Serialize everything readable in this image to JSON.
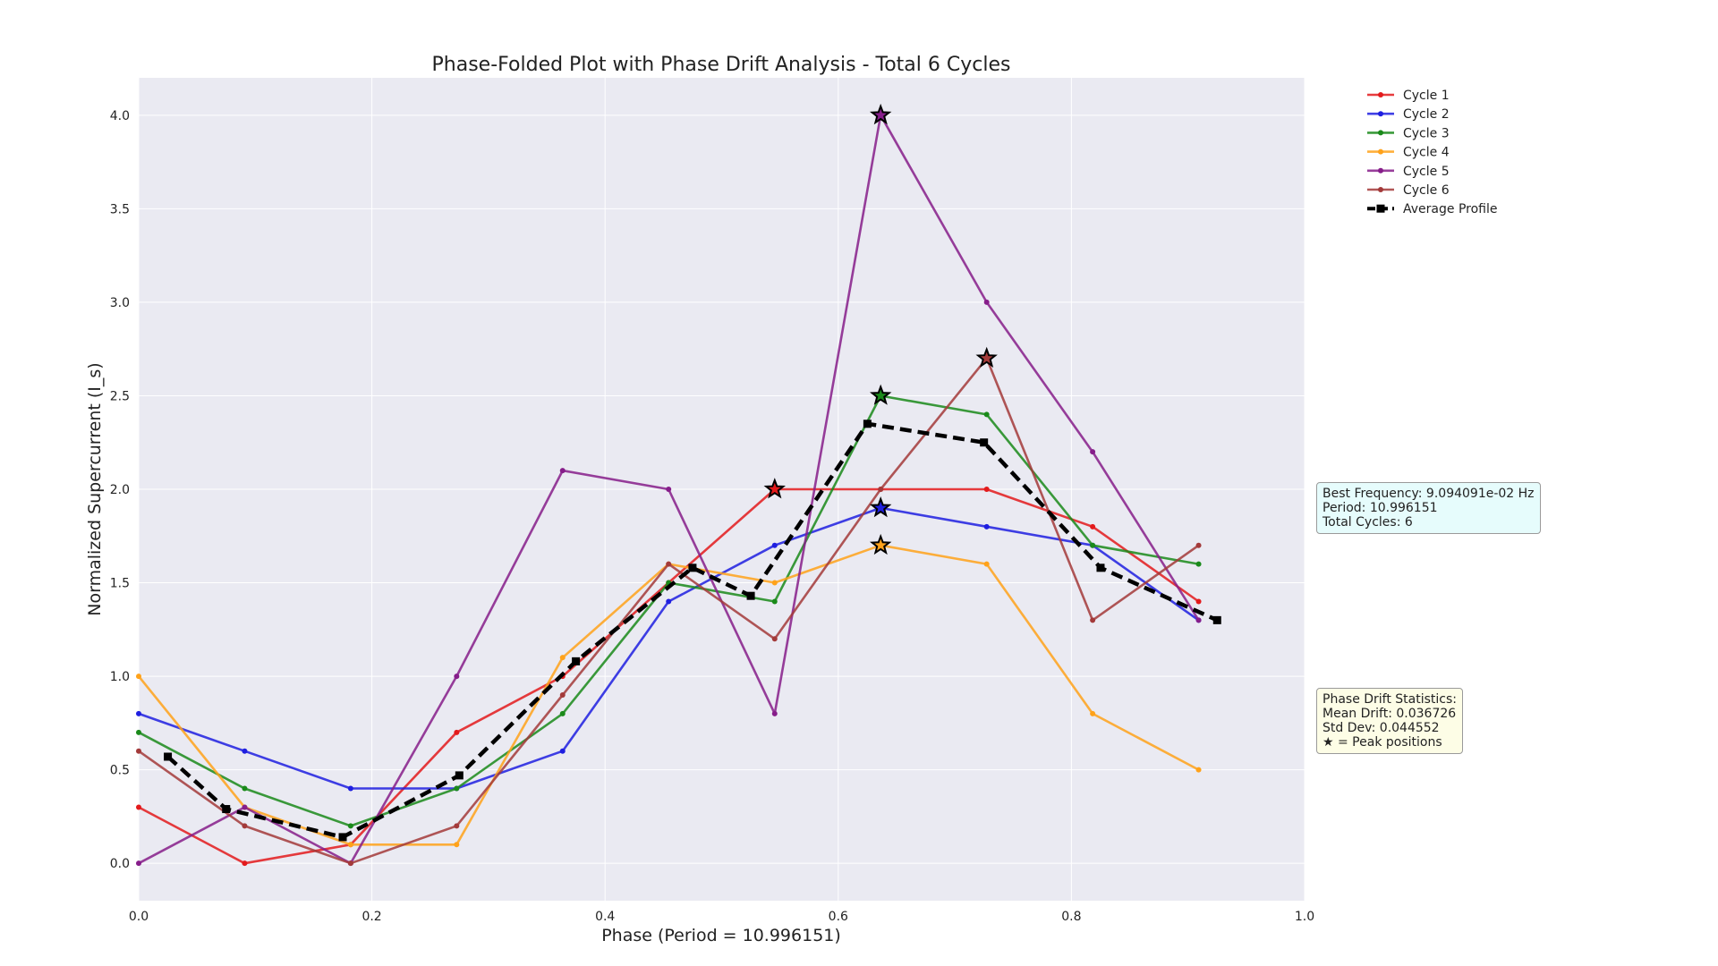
{
  "chart_data": {
    "type": "line",
    "title": "Phase-Folded Plot with Phase Drift Analysis - Total 6 Cycles",
    "xlabel": "Phase (Period = 10.996151)",
    "ylabel": "Normalized Supercurrent (I_s)",
    "xlim": [
      0.0,
      1.0
    ],
    "ylim": [
      -0.2,
      4.2
    ],
    "xticks": [
      "0.0",
      "0.2",
      "0.4",
      "0.6",
      "0.8",
      "1.0"
    ],
    "yticks": [
      "0.0",
      "0.5",
      "1.0",
      "1.5",
      "2.0",
      "2.5",
      "3.0",
      "3.5",
      "4.0"
    ],
    "grid": true,
    "legend_position": "top-right, outside plot",
    "x": [
      0.0,
      0.0909,
      0.1818,
      0.2727,
      0.3636,
      0.4545,
      0.5455,
      0.6364,
      0.7273,
      0.8182,
      0.9091
    ],
    "series": [
      {
        "name": "Cycle 1",
        "color": "#e31a1c",
        "values": [
          0.3,
          0.0,
          0.1,
          0.7,
          1.0,
          1.5,
          2.0,
          2.0,
          2.0,
          1.8,
          1.4
        ],
        "peak_x": 0.5455,
        "peak_y": 2.0
      },
      {
        "name": "Cycle 2",
        "color": "#1f1fe0",
        "values": [
          0.8,
          0.6,
          0.4,
          0.4,
          0.6,
          1.4,
          1.7,
          1.9,
          1.8,
          1.7,
          1.3
        ],
        "peak_x": 0.6364,
        "peak_y": 1.9
      },
      {
        "name": "Cycle 3",
        "color": "#1a8a1a",
        "values": [
          0.7,
          0.4,
          0.2,
          0.4,
          0.8,
          1.5,
          1.4,
          2.5,
          2.4,
          1.7,
          1.6
        ],
        "peak_x": 0.6364,
        "peak_y": 2.5
      },
      {
        "name": "Cycle 4",
        "color": "#ffa21a",
        "values": [
          1.0,
          0.3,
          0.1,
          0.1,
          1.1,
          1.6,
          1.5,
          1.7,
          1.6,
          0.8,
          0.5
        ],
        "peak_x": 0.6364,
        "peak_y": 1.7
      },
      {
        "name": "Cycle 5",
        "color": "#861d8a",
        "values": [
          0.0,
          0.3,
          0.0,
          1.0,
          2.1,
          2.0,
          0.8,
          4.0,
          3.0,
          2.2,
          1.3
        ],
        "peak_x": 0.6364,
        "peak_y": 4.0
      },
      {
        "name": "Cycle 6",
        "color": "#a33a3a",
        "values": [
          0.6,
          0.2,
          0.0,
          0.2,
          0.9,
          1.6,
          1.2,
          2.0,
          2.7,
          1.3,
          1.7
        ],
        "peak_x": 0.7273,
        "peak_y": 2.7
      }
    ],
    "average_profile": {
      "name": "Average Profile",
      "color": "#000000",
      "x": [
        0.025,
        0.075,
        0.175,
        0.275,
        0.375,
        0.475,
        0.525,
        0.625,
        0.725,
        0.825,
        0.925
      ],
      "values": [
        0.57,
        0.29,
        0.14,
        0.47,
        1.08,
        1.58,
        1.43,
        2.35,
        2.25,
        1.58,
        1.3
      ]
    },
    "info_box": {
      "lines": [
        "Best Frequency: 9.094091e-02 Hz",
        "Period: 10.996151",
        "Total Cycles: 6"
      ]
    },
    "drift_box": {
      "lines": [
        "Phase Drift Statistics:",
        "Mean Drift: 0.036726",
        "Std Dev: 0.044552",
        "★ = Peak positions"
      ]
    }
  }
}
